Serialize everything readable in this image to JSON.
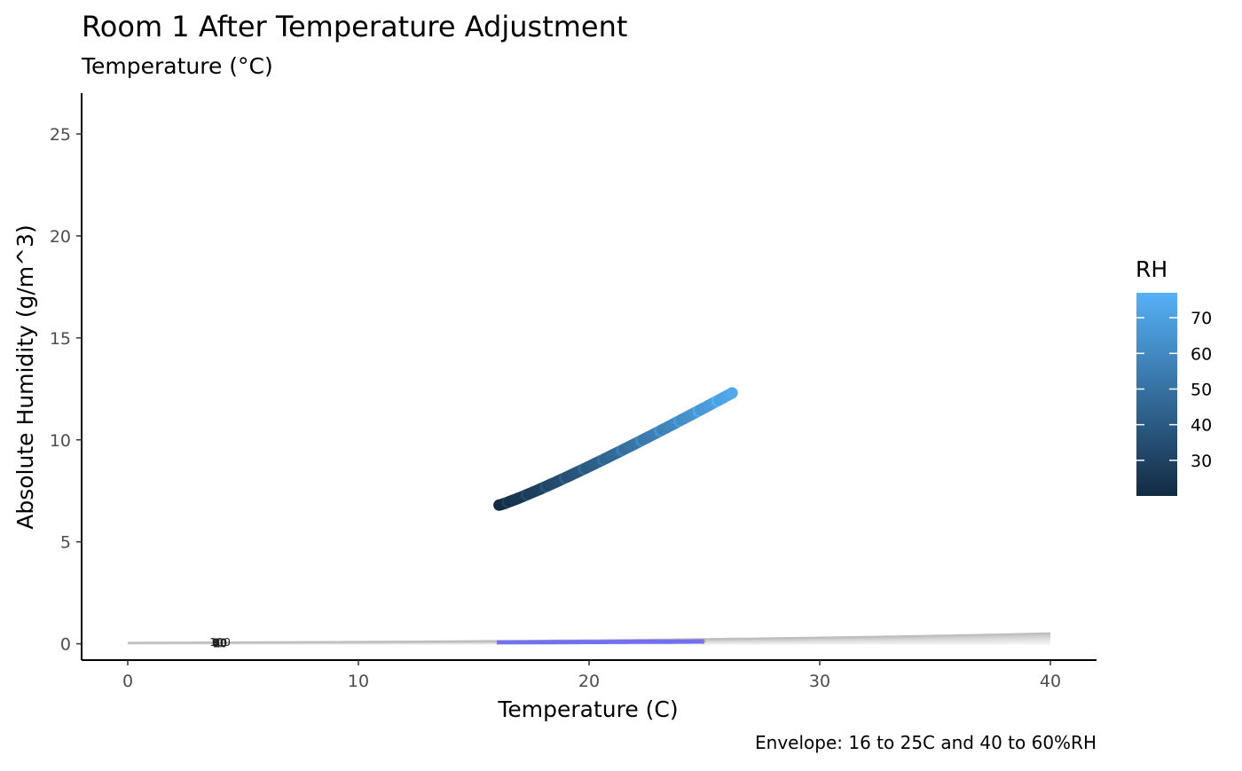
{
  "chart_data": {
    "type": "scatter",
    "title": "Room 1 After Temperature Adjustment",
    "subtitle": "Temperature (°C)",
    "xlabel": "Temperature (C)",
    "ylabel": "Absolute Humidity (g/m^3)",
    "caption": "Envelope: 16 to 25C and 40 to 60%RH",
    "xlim": [
      -2,
      42
    ],
    "ylim": [
      -0.8,
      27
    ],
    "x_ticks": [
      0,
      10,
      20,
      30,
      40
    ],
    "y_ticks": [
      0,
      5,
      10,
      15,
      20,
      25
    ],
    "grid": false,
    "rh_curves": {
      "x_range": [
        0,
        40
      ],
      "levels": [
        0,
        10,
        20,
        30,
        40,
        50,
        60,
        70,
        80,
        90,
        100
      ],
      "labels": [
        "0",
        "10",
        "20",
        "30",
        "40",
        "50",
        "60",
        "70",
        "80",
        "90",
        "100"
      ],
      "label_x": 4,
      "colors": [
        "#f7f7f7",
        "#eeeeee",
        "#ebebeb",
        "#e7e7e7",
        "#e3e3e3",
        "#dedede",
        "#d9d9d9",
        "#d4d4d4",
        "#cfcfcf",
        "#c9c9c9",
        "#bebebe"
      ]
    },
    "envelope": {
      "temp_range": [
        16,
        25
      ],
      "rh_range": [
        40,
        60
      ],
      "temp_edge_color": "#f08080",
      "rh_edge_color": "#7070f0"
    },
    "series": {
      "temp_start": 16.1,
      "temp_end": 26.2,
      "ah_start": 6.8,
      "ah_end": 12.3,
      "rh_start": 20,
      "rh_end": 73
    },
    "legend": {
      "title": "RH",
      "position": "right",
      "min": 20,
      "max": 77,
      "ticks": [
        30,
        40,
        50,
        60,
        70
      ],
      "color_low": "#132b43",
      "color_high": "#56b1f7"
    }
  }
}
